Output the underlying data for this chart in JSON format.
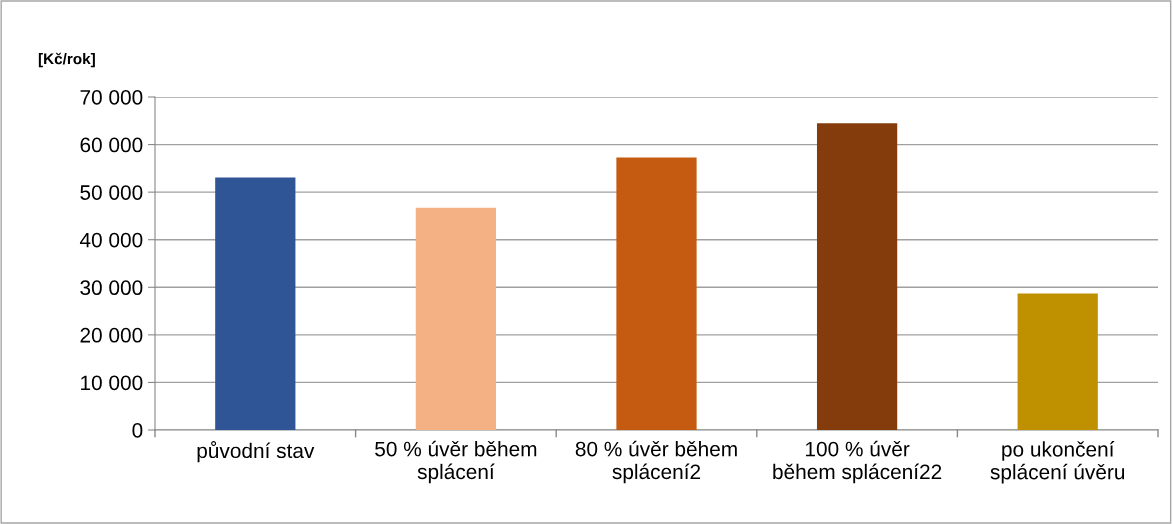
{
  "chart_data": {
    "type": "bar",
    "ylabel": "[Kč/rok]",
    "categories": [
      "původní stav",
      "50 % úvěr během\nsplácení",
      "80 % úvěr během\nsplácení2",
      "100 % úvěr\nběhem splácení22",
      "po ukončení\nsplácení úvěru"
    ],
    "values": [
      53100,
      46700,
      57300,
      64500,
      28700
    ],
    "colors": [
      "#2f5597",
      "#f4b183",
      "#c55a11",
      "#843c0c",
      "#bf9000"
    ],
    "ylim": [
      0,
      70000
    ],
    "yticks": [
      {
        "value": 0,
        "label": "0"
      },
      {
        "value": 10000,
        "label": "10 000"
      },
      {
        "value": 20000,
        "label": "20 000"
      },
      {
        "value": 30000,
        "label": "30 000"
      },
      {
        "value": 40000,
        "label": "40 000"
      },
      {
        "value": 50000,
        "label": "50 000"
      },
      {
        "value": 60000,
        "label": "60 000"
      },
      {
        "value": 70000,
        "label": "70 000"
      }
    ],
    "grid": "y"
  }
}
